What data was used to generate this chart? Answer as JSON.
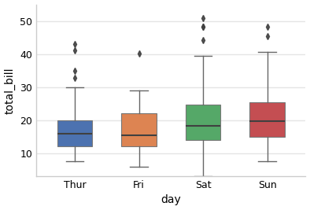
{
  "title": "",
  "xlabel": "day",
  "ylabel": "total_bill",
  "categories": [
    "Thur",
    "Fri",
    "Sat",
    "Sun"
  ],
  "box_colors": [
    "#4c72b0",
    "#dd8452",
    "#55a868",
    "#c44e52"
  ],
  "ylim": [
    3,
    55
  ],
  "yticks": [
    10,
    20,
    30,
    40,
    50
  ],
  "figsize": [
    3.94,
    2.67
  ],
  "dpi": 100,
  "figure_background": "#ffffff",
  "axes_background": "#ffffff",
  "grid_color": "#e5e5e5",
  "spine_color": "#cccccc",
  "median_color": "#404040",
  "whisker_color": "#666666",
  "flier_color": "#404040",
  "box_edge_color": "#777777",
  "box_data": {
    "Thur": {
      "whislo": 7.51,
      "q1": 12.1,
      "med": 15.95,
      "q3": 20.0,
      "whishi": 29.8,
      "fliers": [
        32.68,
        34.83,
        41.19,
        43.11
      ]
    },
    "Fri": {
      "whislo": 5.75,
      "q1": 12.1,
      "med": 15.38,
      "q3": 22.0,
      "whishi": 28.97,
      "fliers": [
        40.17
      ]
    },
    "Sat": {
      "whislo": 3.07,
      "q1": 13.9,
      "med": 18.24,
      "q3": 24.74,
      "whishi": 39.42,
      "fliers": [
        44.3,
        48.17,
        48.27,
        50.81
      ]
    },
    "Sun": {
      "whislo": 7.56,
      "q1": 14.99,
      "med": 19.63,
      "q3": 25.29,
      "whishi": 40.55,
      "fliers": [
        45.35,
        48.17
      ]
    }
  }
}
